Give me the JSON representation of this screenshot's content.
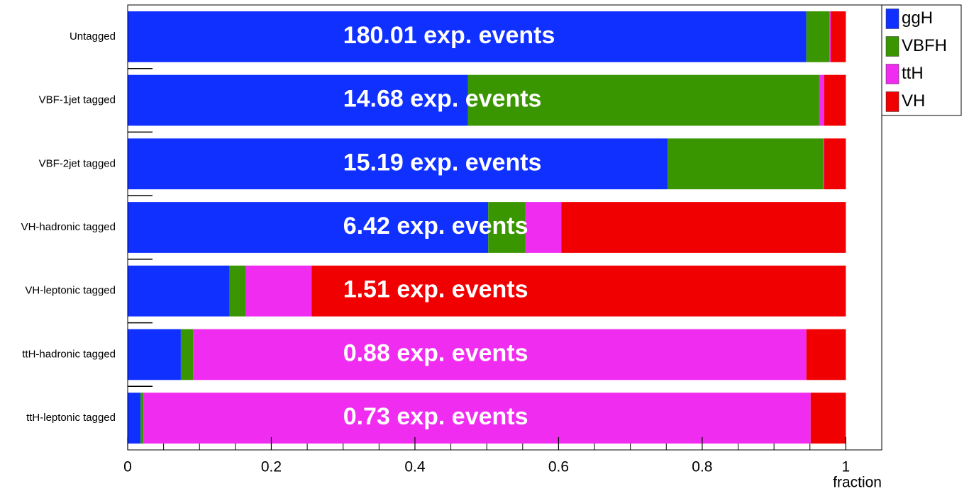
{
  "chart_data": {
    "type": "stacked-barh",
    "categories": [
      "Untagged",
      "VBF-1jet tagged",
      "VBF-2jet tagged",
      "VH-hadronic tagged",
      "VH-leptonic tagged",
      "ttH-hadronic tagged",
      "ttH-leptonic tagged"
    ],
    "series": [
      {
        "name": "ggH",
        "color": "#1030ff",
        "values": [
          0.945,
          0.474,
          0.752,
          0.502,
          0.142,
          0.074,
          0.018
        ]
      },
      {
        "name": "VBFH",
        "color": "#3a9600",
        "values": [
          0.032,
          0.489,
          0.216,
          0.052,
          0.022,
          0.017,
          0.004
        ]
      },
      {
        "name": "ttH",
        "color": "#f02cf0",
        "values": [
          0.002,
          0.007,
          0.002,
          0.05,
          0.092,
          0.854,
          0.929
        ]
      },
      {
        "name": "VH",
        "color": "#f00000",
        "values": [
          0.021,
          0.03,
          0.03,
          0.396,
          0.744,
          0.055,
          0.049
        ]
      }
    ],
    "annotations": [
      "180.01 exp. events",
      "14.68 exp. events",
      "15.19 exp. events",
      "6.42 exp. events",
      "1.51 exp. events",
      "0.88 exp. events",
      "0.73 exp. events"
    ],
    "x_label": "fraction",
    "xlim": [
      0,
      1.05
    ],
    "xticks": [
      0,
      {
        "value": 0.2,
        "label": "0.2"
      },
      {
        "value": 0.4,
        "label": "0.4"
      },
      {
        "value": 0.6,
        "label": "0.6"
      },
      {
        "value": 0.8,
        "label": "0.8"
      },
      1
    ]
  }
}
